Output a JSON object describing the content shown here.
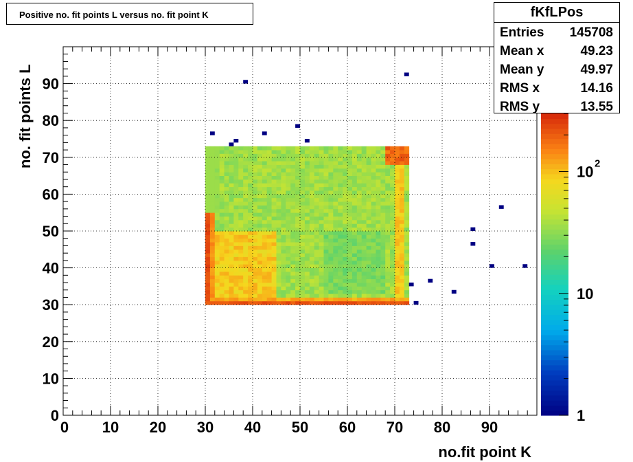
{
  "title": "Positive no. fit points L versus no. fit point K",
  "stats": {
    "name": "fKfLPos",
    "rows": [
      {
        "label": "Entries",
        "value": "145708"
      },
      {
        "label": "Mean x",
        "value": "49.23"
      },
      {
        "label": "Mean y",
        "value": "49.97"
      },
      {
        "label": "RMS x",
        "value": "14.16"
      },
      {
        "label": "RMS y",
        "value": "13.55"
      }
    ]
  },
  "chart_data": {
    "type": "heatmap",
    "title": "Positive no. fit points L versus no. fit point K",
    "xlabel": "no.fit point K",
    "ylabel": "no. fit points  L",
    "xlim": [
      0,
      100
    ],
    "ylim": [
      0,
      100
    ],
    "x_ticks": [
      "0",
      "10",
      "20",
      "30",
      "40",
      "50",
      "60",
      "70",
      "80",
      "90"
    ],
    "y_ticks": [
      "0",
      "10",
      "20",
      "30",
      "40",
      "50",
      "60",
      "70",
      "80",
      "90"
    ],
    "grid": true,
    "z_scale": "log",
    "z_range": [
      1,
      300
    ],
    "colorbar_labels": [
      {
        "value": 1,
        "base": "1",
        "exp": ""
      },
      {
        "value": 10,
        "base": "10",
        "exp": ""
      },
      {
        "value": 100,
        "base": "10",
        "exp": "2"
      }
    ],
    "dense_region": {
      "x": [
        30,
        73
      ],
      "y": [
        30,
        73
      ],
      "approx_counts": "roughly 20 to 300 per bin, highest along K=30, L=30 and near K=70, L=71"
    },
    "outlier_points": [
      {
        "x": 31,
        "y": 76,
        "count": 1
      },
      {
        "x": 35,
        "y": 73,
        "count": 1
      },
      {
        "x": 36,
        "y": 74,
        "count": 1
      },
      {
        "x": 38,
        "y": 90,
        "count": 1
      },
      {
        "x": 42,
        "y": 76,
        "count": 1
      },
      {
        "x": 49,
        "y": 78,
        "count": 1
      },
      {
        "x": 51,
        "y": 74,
        "count": 1
      },
      {
        "x": 72,
        "y": 92,
        "count": 1
      },
      {
        "x": 73,
        "y": 35,
        "count": 1
      },
      {
        "x": 74,
        "y": 30,
        "count": 1
      },
      {
        "x": 77,
        "y": 36,
        "count": 1
      },
      {
        "x": 82,
        "y": 33,
        "count": 1
      },
      {
        "x": 86,
        "y": 50,
        "count": 1
      },
      {
        "x": 86,
        "y": 46,
        "count": 1
      },
      {
        "x": 90,
        "y": 40,
        "count": 1
      },
      {
        "x": 92,
        "y": 56,
        "count": 1
      },
      {
        "x": 97,
        "y": 40,
        "count": 1
      }
    ]
  }
}
